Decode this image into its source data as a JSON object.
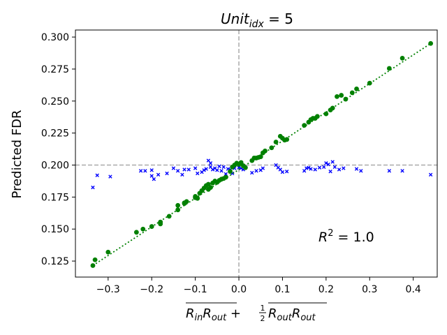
{
  "chart_data": {
    "type": "scatter",
    "title": {
      "base": "Unit",
      "sub": "idx",
      "rest": " = 5"
    },
    "ylabel": "Predicted FDR",
    "xlabel": {
      "term1": "R",
      "term1_sub_in": "in",
      "term1_mid": "R",
      "term1_sub_out": "out",
      "plus": " + ",
      "frac_num": "1",
      "frac_den": "2",
      "term2": "R",
      "term2_sub1": "out",
      "term2_mid": "R",
      "term2_sub2": "out"
    },
    "annotation": {
      "base": "R",
      "sup": "2",
      "rest": " = 1.0"
    },
    "xlim": [
      -0.375,
      0.455
    ],
    "ylim": [
      0.1125,
      0.3055
    ],
    "x_ticks": [
      -0.3,
      -0.2,
      -0.1,
      0.0,
      0.1,
      0.2,
      0.3,
      0.4
    ],
    "x_tick_labels": [
      "−0.3",
      "−0.2",
      "−0.1",
      "0.0",
      "0.1",
      "0.2",
      "0.3",
      "0.4"
    ],
    "y_ticks": [
      0.125,
      0.15,
      0.175,
      0.2,
      0.225,
      0.25,
      0.275,
      0.3
    ],
    "y_tick_labels": [
      "0.125",
      "0.150",
      "0.175",
      "0.200",
      "0.225",
      "0.250",
      "0.275",
      "0.300"
    ],
    "reference_lines": {
      "x": 0.0,
      "y": 0.2,
      "color": "#aaaaaa",
      "style": "dashed"
    },
    "fit_line": {
      "x": [
        -0.335,
        0.44
      ],
      "y": [
        0.1215,
        0.295
      ],
      "color": "#008000",
      "style": "dotted"
    },
    "colors": {
      "green": "#008000",
      "blue": "#0000ff",
      "ref": "#aaaaaa"
    },
    "series": [
      {
        "marker": "circle",
        "color": "#008000",
        "x": [
          -0.335,
          -0.33,
          -0.3,
          -0.235,
          -0.22,
          -0.2,
          -0.18,
          -0.18,
          -0.16,
          -0.14,
          -0.14,
          -0.125,
          -0.125,
          -0.12,
          -0.1,
          -0.1,
          -0.095,
          -0.09,
          -0.085,
          -0.08,
          -0.075,
          -0.07,
          -0.07,
          -0.065,
          -0.06,
          -0.055,
          -0.05,
          -0.045,
          -0.04,
          -0.035,
          -0.03,
          -0.02,
          -0.015,
          -0.01,
          -0.005,
          0.0,
          0.005,
          0.01,
          0.015,
          0.03,
          0.035,
          0.04,
          0.045,
          0.05,
          0.055,
          0.06,
          0.075,
          0.085,
          0.095,
          0.1,
          0.105,
          0.11,
          0.15,
          0.16,
          0.165,
          0.17,
          0.175,
          0.18,
          0.2,
          0.21,
          0.215,
          0.225,
          0.235,
          0.245,
          0.26,
          0.27,
          0.3,
          0.345,
          0.375,
          0.44
        ],
        "y": [
          0.1215,
          0.126,
          0.132,
          0.1475,
          0.15,
          0.152,
          0.154,
          0.1555,
          0.16,
          0.165,
          0.1685,
          0.1705,
          0.17,
          0.1715,
          0.1755,
          0.1745,
          0.174,
          0.178,
          0.18,
          0.182,
          0.184,
          0.185,
          0.181,
          0.1825,
          0.186,
          0.1875,
          0.1865,
          0.188,
          0.189,
          0.1895,
          0.1905,
          0.195,
          0.1985,
          0.2,
          0.2015,
          0.2005,
          0.202,
          0.1995,
          0.198,
          0.2035,
          0.2055,
          0.2055,
          0.206,
          0.2065,
          0.2095,
          0.211,
          0.2135,
          0.218,
          0.2225,
          0.221,
          0.2195,
          0.22,
          0.231,
          0.2335,
          0.2355,
          0.2365,
          0.2365,
          0.238,
          0.24,
          0.243,
          0.2445,
          0.2535,
          0.2545,
          0.2515,
          0.2565,
          0.2595,
          0.264,
          0.2755,
          0.2835,
          0.295
        ]
      },
      {
        "marker": "x",
        "color": "#0000ff",
        "x": [
          -0.335,
          -0.325,
          -0.295,
          -0.225,
          -0.215,
          -0.2,
          -0.2,
          -0.195,
          -0.185,
          -0.165,
          -0.15,
          -0.14,
          -0.13,
          -0.125,
          -0.115,
          -0.1,
          -0.095,
          -0.085,
          -0.08,
          -0.075,
          -0.07,
          -0.065,
          -0.065,
          -0.06,
          -0.055,
          -0.05,
          -0.045,
          -0.04,
          -0.035,
          -0.03,
          -0.025,
          -0.02,
          -0.015,
          -0.01,
          0.0,
          0.005,
          0.01,
          0.03,
          0.04,
          0.05,
          0.055,
          0.085,
          0.09,
          0.095,
          0.1,
          0.11,
          0.15,
          0.155,
          0.16,
          0.165,
          0.175,
          0.185,
          0.195,
          0.2,
          0.205,
          0.21,
          0.215,
          0.22,
          0.23,
          0.24,
          0.27,
          0.28,
          0.345,
          0.375,
          0.44
        ],
        "y": [
          0.1825,
          0.192,
          0.191,
          0.1955,
          0.1955,
          0.196,
          0.1915,
          0.189,
          0.1925,
          0.1935,
          0.1975,
          0.1955,
          0.1925,
          0.1965,
          0.1965,
          0.1975,
          0.1935,
          0.1945,
          0.196,
          0.197,
          0.2035,
          0.2015,
          0.1985,
          0.1965,
          0.1975,
          0.196,
          0.199,
          0.1955,
          0.1985,
          0.193,
          0.197,
          0.1965,
          0.1935,
          0.1975,
          0.198,
          0.1975,
          0.1965,
          0.194,
          0.1955,
          0.196,
          0.1975,
          0.2,
          0.198,
          0.1965,
          0.1945,
          0.195,
          0.1955,
          0.1975,
          0.198,
          0.197,
          0.1965,
          0.198,
          0.1985,
          0.2015,
          0.2005,
          0.195,
          0.2025,
          0.1985,
          0.1965,
          0.1975,
          0.197,
          0.1955,
          0.1955,
          0.1955,
          0.1925
        ]
      }
    ]
  }
}
